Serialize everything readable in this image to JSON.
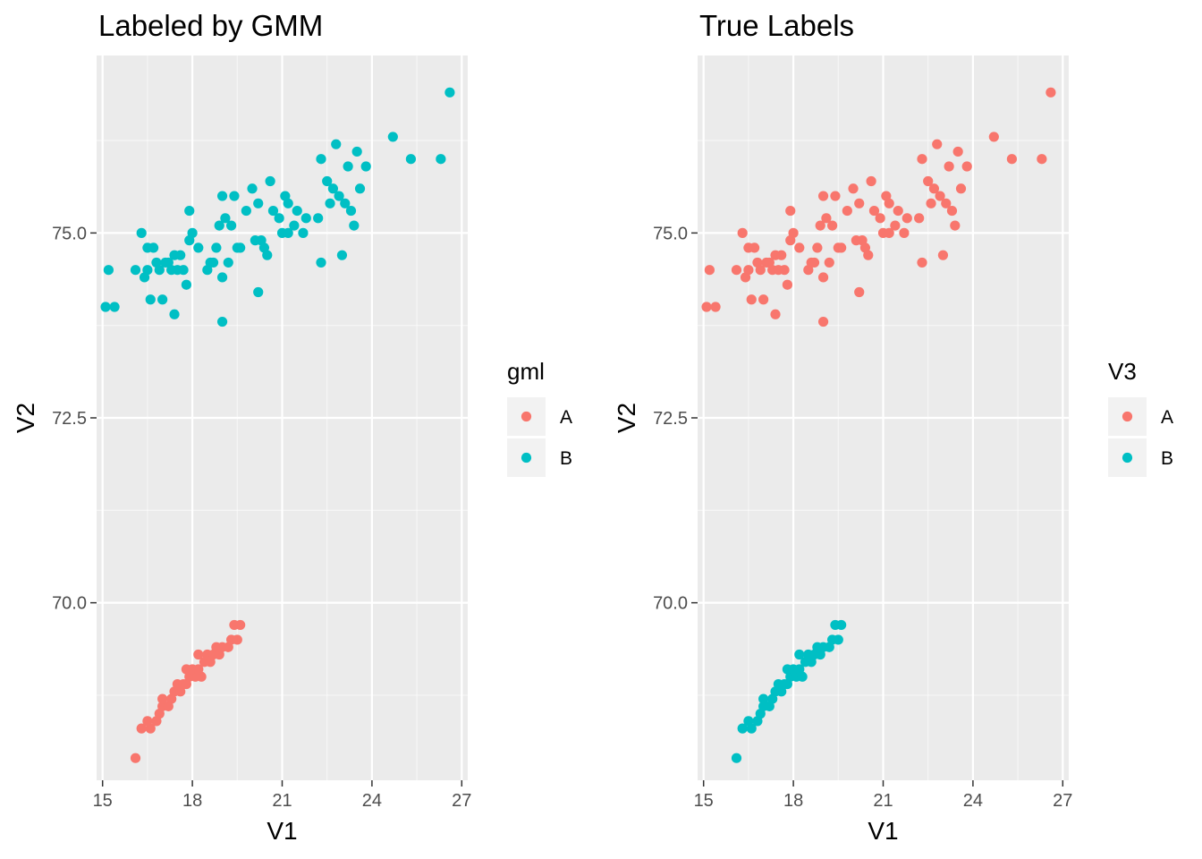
{
  "colors": {
    "A": "#F8766D",
    "B": "#00BFC4",
    "panel": "#EBEBEB",
    "grid_major": "#FFFFFF",
    "tick": "#333333",
    "legend_key": "#F2F2F2"
  },
  "chart_data": [
    {
      "type": "scatter",
      "title": "Labeled by GMM",
      "xlabel": "V1",
      "ylabel": "V2",
      "xlim": [
        14.8,
        27.2
      ],
      "ylim": [
        67.6,
        77.4
      ],
      "xticks": [
        "15",
        "18",
        "21",
        "24",
        "27"
      ],
      "yticks": [
        "70.0",
        "72.5",
        "75.0"
      ],
      "grid": true,
      "legend": {
        "title": "gml",
        "placement": "right",
        "entries": [
          {
            "name": "A",
            "color": "#F8766D"
          },
          {
            "name": "B",
            "color": "#00BFC4"
          }
        ]
      },
      "series": [
        {
          "name": "A",
          "color": "#F8766D",
          "points": [
            [
              16.1,
              67.9
            ],
            [
              16.3,
              68.3
            ],
            [
              16.6,
              68.3
            ],
            [
              16.5,
              68.4
            ],
            [
              16.8,
              68.4
            ],
            [
              16.9,
              68.5
            ],
            [
              17.0,
              68.6
            ],
            [
              17.2,
              68.6
            ],
            [
              17.0,
              68.7
            ],
            [
              17.3,
              68.7
            ],
            [
              17.4,
              68.8
            ],
            [
              17.6,
              68.8
            ],
            [
              17.5,
              68.9
            ],
            [
              17.7,
              68.9
            ],
            [
              17.8,
              68.9
            ],
            [
              17.9,
              69.0
            ],
            [
              18.1,
              69.0
            ],
            [
              18.3,
              69.0
            ],
            [
              17.8,
              69.1
            ],
            [
              18.0,
              69.1
            ],
            [
              18.2,
              69.1
            ],
            [
              18.4,
              69.2
            ],
            [
              18.6,
              69.2
            ],
            [
              18.2,
              69.3
            ],
            [
              18.5,
              69.3
            ],
            [
              18.7,
              69.3
            ],
            [
              18.9,
              69.3
            ],
            [
              19.0,
              69.4
            ],
            [
              19.2,
              69.4
            ],
            [
              18.8,
              69.4
            ],
            [
              19.3,
              69.5
            ],
            [
              19.5,
              69.5
            ],
            [
              19.4,
              69.7
            ],
            [
              19.6,
              69.7
            ]
          ]
        },
        {
          "name": "B",
          "color": "#00BFC4",
          "points": [
            [
              15.1,
              74.0
            ],
            [
              15.2,
              74.5
            ],
            [
              15.4,
              74.0
            ],
            [
              16.1,
              74.5
            ],
            [
              16.3,
              75.0
            ],
            [
              16.4,
              74.4
            ],
            [
              16.5,
              74.8
            ],
            [
              16.5,
              74.5
            ],
            [
              16.6,
              74.1
            ],
            [
              16.7,
              74.8
            ],
            [
              16.8,
              74.6
            ],
            [
              16.9,
              74.5
            ],
            [
              17.0,
              74.1
            ],
            [
              17.1,
              74.6
            ],
            [
              17.2,
              74.6
            ],
            [
              17.3,
              74.5
            ],
            [
              17.4,
              74.7
            ],
            [
              17.4,
              73.9
            ],
            [
              17.5,
              74.5
            ],
            [
              17.6,
              74.7
            ],
            [
              17.7,
              74.5
            ],
            [
              17.8,
              74.3
            ],
            [
              17.9,
              74.9
            ],
            [
              18.0,
              75.0
            ],
            [
              17.9,
              75.3
            ],
            [
              18.2,
              74.8
            ],
            [
              18.5,
              74.5
            ],
            [
              18.6,
              74.6
            ],
            [
              18.7,
              74.6
            ],
            [
              18.8,
              74.8
            ],
            [
              18.9,
              75.1
            ],
            [
              19.0,
              75.5
            ],
            [
              19.0,
              74.4
            ],
            [
              19.0,
              73.8
            ],
            [
              19.1,
              75.2
            ],
            [
              19.2,
              74.6
            ],
            [
              19.3,
              75.1
            ],
            [
              19.4,
              75.5
            ],
            [
              19.5,
              74.8
            ],
            [
              19.6,
              74.8
            ],
            [
              19.8,
              75.3
            ],
            [
              20.0,
              75.6
            ],
            [
              20.1,
              74.9
            ],
            [
              20.2,
              75.4
            ],
            [
              20.2,
              74.2
            ],
            [
              20.3,
              74.9
            ],
            [
              20.4,
              74.8
            ],
            [
              20.5,
              74.7
            ],
            [
              20.6,
              75.7
            ],
            [
              20.7,
              75.3
            ],
            [
              20.9,
              75.2
            ],
            [
              21.0,
              75.0
            ],
            [
              21.1,
              75.5
            ],
            [
              21.2,
              75.4
            ],
            [
              21.2,
              75.0
            ],
            [
              21.4,
              75.1
            ],
            [
              21.5,
              75.3
            ],
            [
              21.7,
              75.0
            ],
            [
              21.8,
              75.2
            ],
            [
              22.2,
              75.2
            ],
            [
              22.3,
              76.0
            ],
            [
              22.5,
              75.7
            ],
            [
              22.6,
              75.4
            ],
            [
              22.7,
              75.6
            ],
            [
              22.8,
              76.2
            ],
            [
              22.9,
              75.5
            ],
            [
              23.0,
              74.7
            ],
            [
              23.1,
              75.4
            ],
            [
              23.2,
              75.9
            ],
            [
              23.3,
              75.3
            ],
            [
              23.4,
              75.1
            ],
            [
              23.5,
              76.1
            ],
            [
              23.6,
              75.6
            ],
            [
              23.8,
              75.9
            ],
            [
              22.3,
              74.6
            ],
            [
              24.7,
              76.3
            ],
            [
              25.3,
              76.0
            ],
            [
              26.3,
              76.0
            ],
            [
              26.6,
              76.9
            ]
          ]
        }
      ]
    },
    {
      "type": "scatter",
      "title": "True Labels",
      "xlabel": "V1",
      "ylabel": "V2",
      "xlim": [
        14.8,
        27.2
      ],
      "ylim": [
        67.6,
        77.4
      ],
      "xticks": [
        "15",
        "18",
        "21",
        "24",
        "27"
      ],
      "yticks": [
        "70.0",
        "72.5",
        "75.0"
      ],
      "grid": true,
      "legend": {
        "title": "V3",
        "placement": "right",
        "entries": [
          {
            "name": "A",
            "color": "#F8766D"
          },
          {
            "name": "B",
            "color": "#00BFC4"
          }
        ]
      },
      "series": [
        {
          "name": "A",
          "color": "#F8766D",
          "points": [
            [
              15.1,
              74.0
            ],
            [
              15.2,
              74.5
            ],
            [
              15.4,
              74.0
            ],
            [
              16.1,
              74.5
            ],
            [
              16.3,
              75.0
            ],
            [
              16.4,
              74.4
            ],
            [
              16.5,
              74.8
            ],
            [
              16.5,
              74.5
            ],
            [
              16.6,
              74.1
            ],
            [
              16.7,
              74.8
            ],
            [
              16.8,
              74.6
            ],
            [
              16.9,
              74.5
            ],
            [
              17.0,
              74.1
            ],
            [
              17.1,
              74.6
            ],
            [
              17.2,
              74.6
            ],
            [
              17.3,
              74.5
            ],
            [
              17.4,
              74.7
            ],
            [
              17.4,
              73.9
            ],
            [
              17.5,
              74.5
            ],
            [
              17.6,
              74.7
            ],
            [
              17.7,
              74.5
            ],
            [
              17.8,
              74.3
            ],
            [
              17.9,
              74.9
            ],
            [
              18.0,
              75.0
            ],
            [
              17.9,
              75.3
            ],
            [
              18.2,
              74.8
            ],
            [
              18.5,
              74.5
            ],
            [
              18.6,
              74.6
            ],
            [
              18.7,
              74.6
            ],
            [
              18.8,
              74.8
            ],
            [
              18.9,
              75.1
            ],
            [
              19.0,
              75.5
            ],
            [
              19.0,
              74.4
            ],
            [
              19.0,
              73.8
            ],
            [
              19.1,
              75.2
            ],
            [
              19.2,
              74.6
            ],
            [
              19.3,
              75.1
            ],
            [
              19.4,
              75.5
            ],
            [
              19.5,
              74.8
            ],
            [
              19.6,
              74.8
            ],
            [
              19.8,
              75.3
            ],
            [
              20.0,
              75.6
            ],
            [
              20.1,
              74.9
            ],
            [
              20.2,
              75.4
            ],
            [
              20.2,
              74.2
            ],
            [
              20.3,
              74.9
            ],
            [
              20.4,
              74.8
            ],
            [
              20.5,
              74.7
            ],
            [
              20.6,
              75.7
            ],
            [
              20.7,
              75.3
            ],
            [
              20.9,
              75.2
            ],
            [
              21.0,
              75.0
            ],
            [
              21.1,
              75.5
            ],
            [
              21.2,
              75.4
            ],
            [
              21.2,
              75.0
            ],
            [
              21.4,
              75.1
            ],
            [
              21.5,
              75.3
            ],
            [
              21.7,
              75.0
            ],
            [
              21.8,
              75.2
            ],
            [
              22.2,
              75.2
            ],
            [
              22.3,
              76.0
            ],
            [
              22.5,
              75.7
            ],
            [
              22.6,
              75.4
            ],
            [
              22.7,
              75.6
            ],
            [
              22.8,
              76.2
            ],
            [
              22.9,
              75.5
            ],
            [
              23.0,
              74.7
            ],
            [
              23.1,
              75.4
            ],
            [
              23.2,
              75.9
            ],
            [
              23.3,
              75.3
            ],
            [
              23.4,
              75.1
            ],
            [
              23.5,
              76.1
            ],
            [
              23.6,
              75.6
            ],
            [
              23.8,
              75.9
            ],
            [
              22.3,
              74.6
            ],
            [
              24.7,
              76.3
            ],
            [
              25.3,
              76.0
            ],
            [
              26.3,
              76.0
            ],
            [
              26.6,
              76.9
            ]
          ]
        },
        {
          "name": "B",
          "color": "#00BFC4",
          "points": [
            [
              16.1,
              67.9
            ],
            [
              16.3,
              68.3
            ],
            [
              16.6,
              68.3
            ],
            [
              16.5,
              68.4
            ],
            [
              16.8,
              68.4
            ],
            [
              16.9,
              68.5
            ],
            [
              17.0,
              68.6
            ],
            [
              17.2,
              68.6
            ],
            [
              17.0,
              68.7
            ],
            [
              17.3,
              68.7
            ],
            [
              17.4,
              68.8
            ],
            [
              17.6,
              68.8
            ],
            [
              17.5,
              68.9
            ],
            [
              17.7,
              68.9
            ],
            [
              17.8,
              68.9
            ],
            [
              17.9,
              69.0
            ],
            [
              18.1,
              69.0
            ],
            [
              18.3,
              69.0
            ],
            [
              17.8,
              69.1
            ],
            [
              18.0,
              69.1
            ],
            [
              18.2,
              69.1
            ],
            [
              18.4,
              69.2
            ],
            [
              18.6,
              69.2
            ],
            [
              18.2,
              69.3
            ],
            [
              18.5,
              69.3
            ],
            [
              18.7,
              69.3
            ],
            [
              18.9,
              69.3
            ],
            [
              19.0,
              69.4
            ],
            [
              19.2,
              69.4
            ],
            [
              18.8,
              69.4
            ],
            [
              19.3,
              69.5
            ],
            [
              19.5,
              69.5
            ],
            [
              19.4,
              69.7
            ],
            [
              19.6,
              69.7
            ]
          ]
        }
      ]
    }
  ]
}
